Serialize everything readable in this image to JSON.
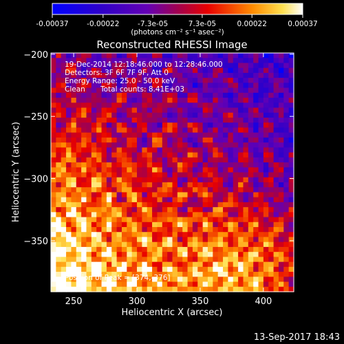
{
  "colorbar": {
    "tick_labels": [
      "-0.00037",
      "-0.00022",
      "-7.3e-05",
      "7.3e-05",
      "0.00022",
      "0.00037"
    ],
    "unit_label": "(photons cm⁻² s⁻¹ asec⁻²)",
    "range": [
      -0.00037,
      0.00037
    ],
    "colormap": "rhessi_red_temperature"
  },
  "overlay": {
    "time_range": "19-Dec-2014 12:18:46.000 to 12:28:46.000",
    "detectors": "Detectors: 3F 6F 7F 9F, Att 0",
    "energy_range": "Energy Range: 25.0 - 50.0 keV",
    "algorithm": "Clean",
    "total_counts": "Total counts: 8.41E+03",
    "peak_position": "Position of Peak = [374,-376]"
  },
  "footer": {
    "timestamp": "13-Sep-2017 18:43"
  },
  "chart_data": {
    "type": "heatmap",
    "title": "Reconstructed RHESSI Image",
    "xlabel": "Heliocentric X (arcsec)",
    "ylabel": "Heliocentric Y (arcsec)",
    "xlim": [
      232,
      424
    ],
    "ylim": [
      -391,
      -199
    ],
    "x_ticks": [
      250,
      300,
      350,
      400
    ],
    "y_ticks": [
      -200,
      -250,
      -300,
      -350
    ],
    "x_tick_labels": [
      "250",
      "300",
      "350",
      "400"
    ],
    "y_tick_labels": [
      "−200",
      "−250",
      "−300",
      "−350"
    ],
    "value_range": [
      -0.00037,
      0.00037
    ],
    "peak": [
      374,
      -376
    ]
  }
}
